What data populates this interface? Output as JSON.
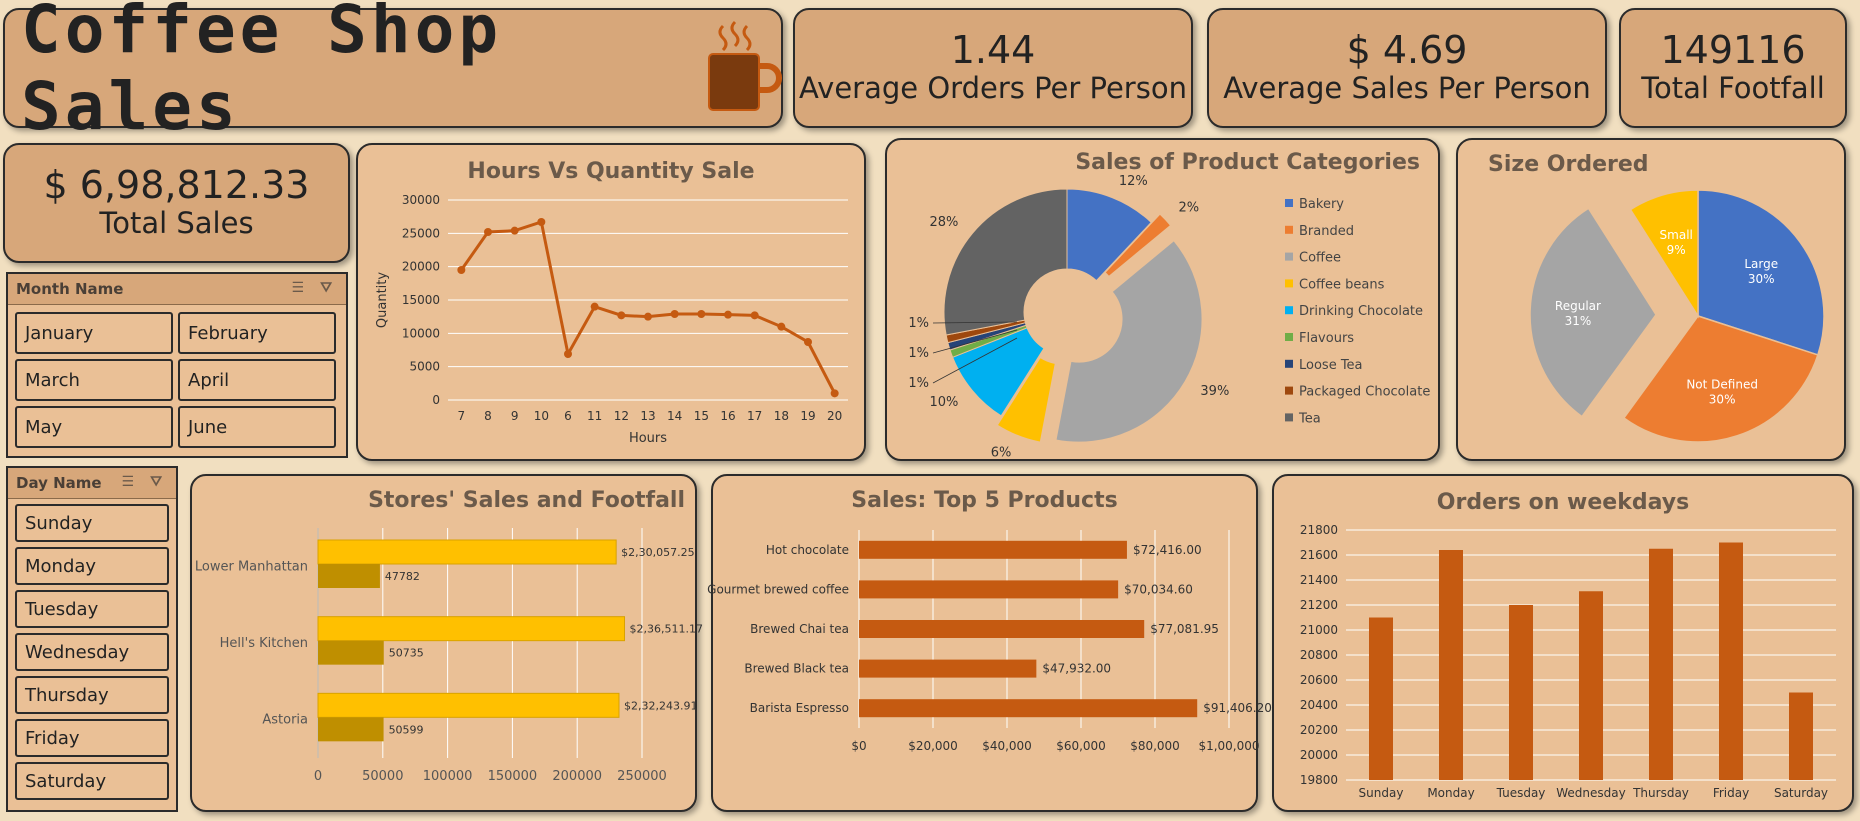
{
  "title": "Coffee Shop Sales",
  "kpis": {
    "avg_orders": {
      "value": "1.44",
      "label": "Average Orders Per Person"
    },
    "avg_sales": {
      "value": "$ 4.69",
      "label": "Average Sales Per Person"
    },
    "footfall": {
      "value": "149116",
      "label": "Total Footfall"
    },
    "total_sales": {
      "value": "$ 6,98,812.33",
      "label": "Total Sales"
    }
  },
  "month_slicer": {
    "header": "Month Name",
    "items": [
      "January",
      "February",
      "March",
      "April",
      "May",
      "June"
    ]
  },
  "day_slicer": {
    "header": "Day Name",
    "items": [
      "Sunday",
      "Monday",
      "Tuesday",
      "Wednesday",
      "Thursday",
      "Friday",
      "Saturday"
    ]
  },
  "colors": {
    "accent": "#c55a11",
    "bg": "#f1dfc0",
    "card": "#eac096",
    "kpi": "#d7a77a"
  },
  "chart_data": [
    {
      "id": "hours",
      "type": "line",
      "title": "Hours Vs Quantity Sale",
      "xlabel": "Hours",
      "ylabel": "Quantity",
      "categories": [
        "7",
        "8",
        "9",
        "10",
        "6",
        "11",
        "12",
        "13",
        "14",
        "15",
        "16",
        "17",
        "18",
        "19",
        "20"
      ],
      "values": [
        19500,
        25200,
        25400,
        26700,
        6900,
        14000,
        12700,
        12500,
        12900,
        12900,
        12800,
        12700,
        11000,
        8700,
        1000
      ],
      "ylim": [
        0,
        30000
      ],
      "yticks": [
        "0",
        "5000",
        "10000",
        "15000",
        "20000",
        "25000",
        "30000"
      ],
      "grid": true
    },
    {
      "id": "categories",
      "type": "pie",
      "title": "Sales of Product Categories",
      "labels": [
        "Bakery",
        "Branded",
        "Coffee",
        "Coffee beans",
        "Drinking Chocolate",
        "Flavours",
        "Loose Tea",
        "Packaged Chocolate",
        "Tea"
      ],
      "values": [
        12,
        2,
        39,
        6,
        10,
        1,
        1,
        1,
        28
      ],
      "value_labels": [
        "12%",
        "2%",
        "39%",
        "6%",
        "10%",
        "1%",
        "1%",
        "1%",
        "28%"
      ],
      "colors": [
        "#4472c4",
        "#ed7d31",
        "#a5a5a5",
        "#ffc000",
        "#00b0f0",
        "#70ad47",
        "#264478",
        "#9e480e",
        "#636363"
      ],
      "legend": "right"
    },
    {
      "id": "size",
      "type": "pie",
      "title": "Size Ordered",
      "labels": [
        "Large",
        "Not Defined",
        "Regular",
        "Small"
      ],
      "values": [
        30,
        30,
        31,
        9
      ],
      "value_labels": [
        "30%",
        "30%",
        "31%",
        "9%"
      ],
      "colors": [
        "#4472c4",
        "#ed7d31",
        "#a5a5a5",
        "#ffc000"
      ]
    },
    {
      "id": "stores",
      "type": "bar",
      "title": "Stores' Sales and Footfall",
      "categories": [
        "Lower Manhattan",
        "Hell's Kitchen",
        "Astoria"
      ],
      "series": [
        {
          "values": [
            230057.25,
            236511.17,
            232243.91
          ],
          "labels": [
            "$2,30,057.25",
            "$2,36,511.17",
            "$2,32,243.91"
          ]
        },
        {
          "values": [
            47782,
            50735,
            50599
          ],
          "labels": [
            "47782",
            "50735",
            "50599"
          ]
        }
      ],
      "xlim": [
        0,
        250000
      ],
      "xticks": [
        "0",
        "50000",
        "100000",
        "150000",
        "200000",
        "250000"
      ]
    },
    {
      "id": "top5",
      "type": "bar",
      "title": "Sales: Top 5 Products",
      "categories": [
        "Hot chocolate",
        "Gourmet brewed coffee",
        "Brewed Chai tea",
        "Brewed Black tea",
        "Barista Espresso"
      ],
      "values": [
        72416,
        70034.6,
        77081.95,
        47932,
        91406.2
      ],
      "value_labels": [
        "$72,416.00",
        "$70,034.60",
        "$77,081.95",
        "$47,932.00",
        "$91,406.20"
      ],
      "xlim": [
        0,
        100000
      ],
      "xticks": [
        "$0",
        "$20,000",
        "$40,000",
        "$60,000",
        "$80,000",
        "$1,00,000"
      ]
    },
    {
      "id": "weekdays",
      "type": "bar",
      "title": "Orders on weekdays",
      "categories": [
        "Sunday",
        "Monday",
        "Tuesday",
        "Wednesday",
        "Thursday",
        "Friday",
        "Saturday"
      ],
      "values": [
        21100,
        21640,
        21200,
        21310,
        21650,
        21700,
        20500
      ],
      "ylim": [
        19800,
        21800
      ],
      "yticks": [
        "19800",
        "20000",
        "20200",
        "20400",
        "20600",
        "20800",
        "21000",
        "21200",
        "21400",
        "21600",
        "21800"
      ],
      "grid": true
    }
  ]
}
